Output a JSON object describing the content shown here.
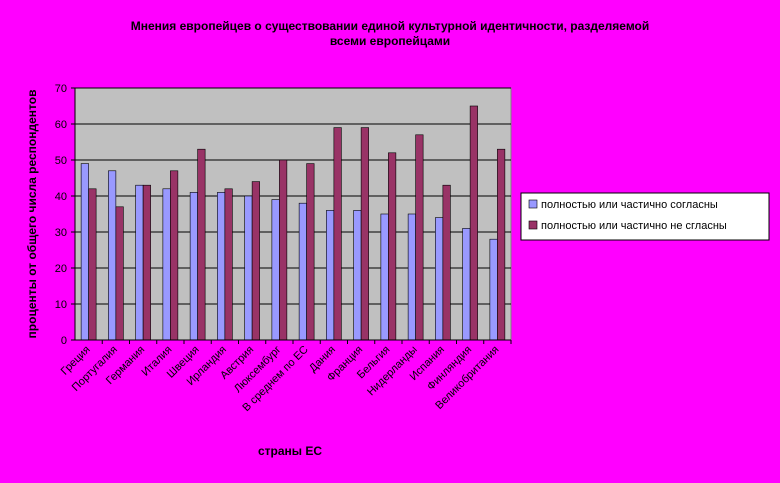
{
  "chart_data": {
    "type": "bar",
    "title_lines": [
      "Мнения европейцев о существовании единой культурной идентичности, разделяемой",
      "всеми европейцами"
    ],
    "xlabel": "страны ЕС",
    "ylabel": "проценты от общего числа респондентов",
    "ylim": [
      0,
      70
    ],
    "yticks": [
      0,
      10,
      20,
      30,
      40,
      50,
      60,
      70
    ],
    "grid": true,
    "legend_position": "right",
    "categories": [
      "Греция",
      "Португалия",
      "Германия",
      "Италия",
      "Швеция",
      "Ирландия",
      "Австрия",
      "Люксембург",
      "В среднем по ЕС",
      "Дания",
      "Франция",
      "Бельгия",
      "Нидерланды",
      "Испания",
      "Финляндия",
      "Великобритания"
    ],
    "series": [
      {
        "name": "полностью или частично согласны",
        "color": "#9999ff",
        "values": [
          49,
          47,
          43,
          42,
          41,
          41,
          40,
          39,
          38,
          36,
          36,
          35,
          35,
          34,
          31,
          28
        ]
      },
      {
        "name": "полностью или частично не сгласны",
        "color": "#993366",
        "values": [
          42,
          37,
          43,
          47,
          53,
          42,
          44,
          50,
          49,
          59,
          59,
          52,
          57,
          43,
          65,
          53
        ]
      }
    ],
    "plot_background": "#c0c0c0"
  }
}
